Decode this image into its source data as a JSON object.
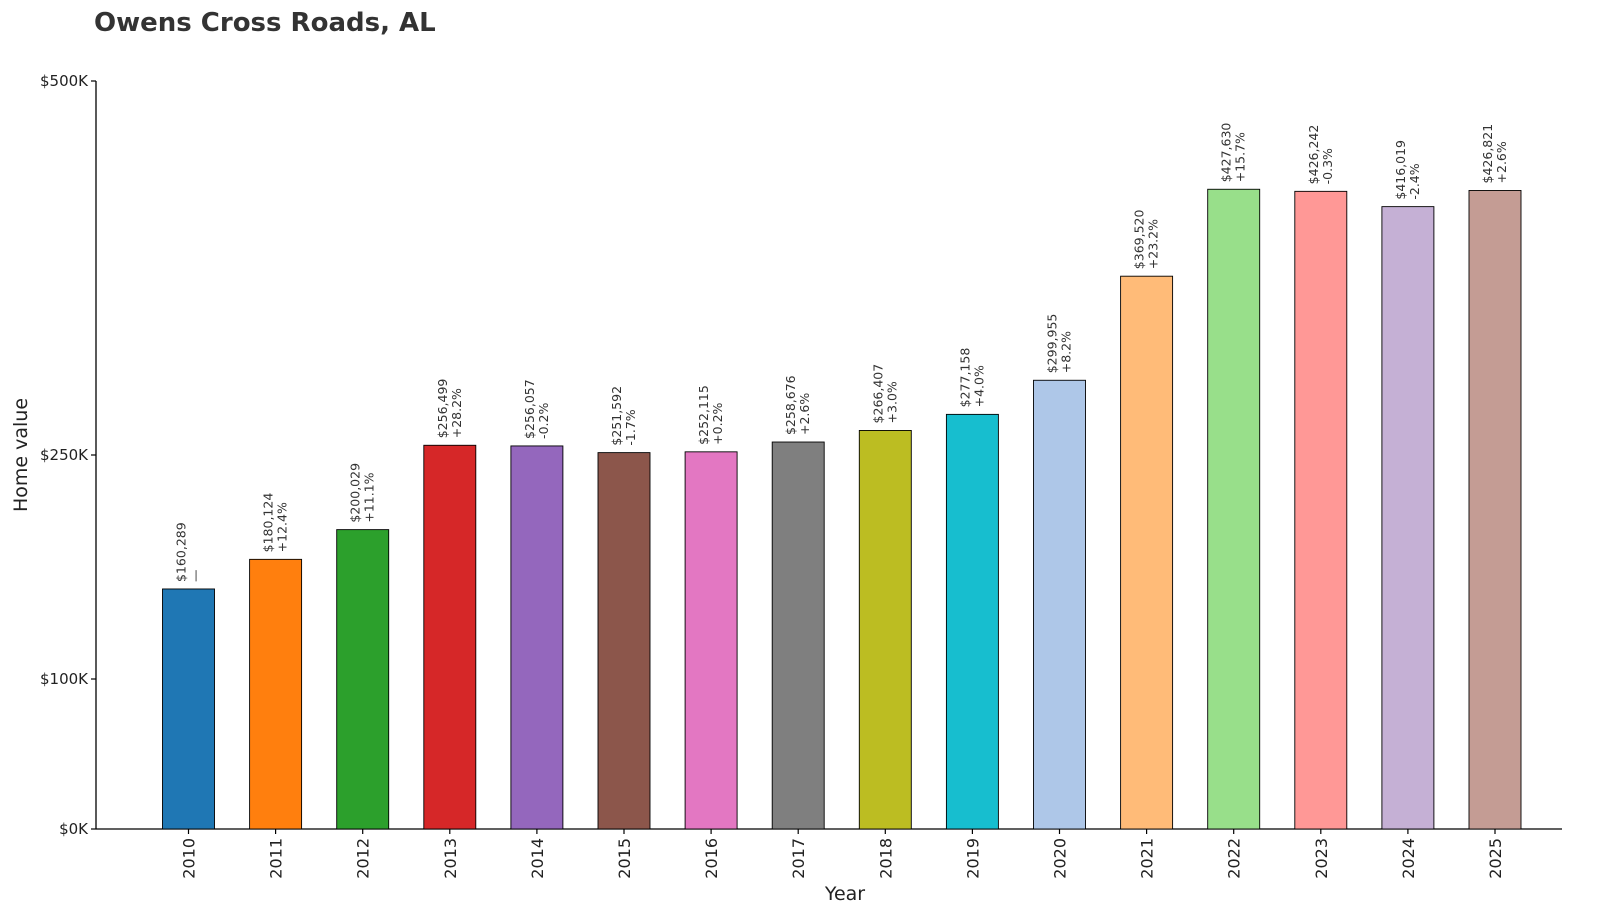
{
  "chart_data": {
    "type": "bar",
    "title": "Owens Cross Roads, AL",
    "xlabel": "Year",
    "ylabel": "Home value",
    "ylim": [
      0,
      500000
    ],
    "yticks": [
      {
        "value": 0,
        "label": "$0K"
      },
      {
        "value": 100000,
        "label": "$100K"
      },
      {
        "value": 250000,
        "label": "$250K"
      },
      {
        "value": 500000,
        "label": "$500K"
      }
    ],
    "grid": false,
    "categories": [
      "2010",
      "2011",
      "2012",
      "2013",
      "2014",
      "2015",
      "2016",
      "2017",
      "2018",
      "2019",
      "2020",
      "2021",
      "2022",
      "2023",
      "2024",
      "2025"
    ],
    "values": [
      160289,
      180124,
      200029,
      256499,
      256057,
      251592,
      252115,
      258676,
      266407,
      277158,
      299955,
      369520,
      427630,
      426242,
      416019,
      426821
    ],
    "value_labels": [
      "$160,289",
      "$180,124",
      "$200,029",
      "$256,499",
      "$256,057",
      "$251,592",
      "$252,115",
      "$258,676",
      "$266,407",
      "$277,158",
      "$299,955",
      "$369,520",
      "$427,630",
      "$426,242",
      "$416,019",
      "$426,821"
    ],
    "change_labels": [
      "—",
      "+12.4%",
      "+11.1%",
      "+28.2%",
      "-0.2%",
      "-1.7%",
      "+0.2%",
      "+2.6%",
      "+3.0%",
      "+4.0%",
      "+8.2%",
      "+23.2%",
      "+15.7%",
      "-0.3%",
      "-2.4%",
      "+2.6%"
    ],
    "colors": [
      "#1f77b4",
      "#ff7f0e",
      "#2ca02c",
      "#d62728",
      "#9467bd",
      "#8c564b",
      "#e377c2",
      "#7f7f7f",
      "#bcbd22",
      "#17becf",
      "#aec7e8",
      "#ffbb78",
      "#98df8a",
      "#ff9896",
      "#c5b0d5",
      "#c49c94"
    ]
  }
}
